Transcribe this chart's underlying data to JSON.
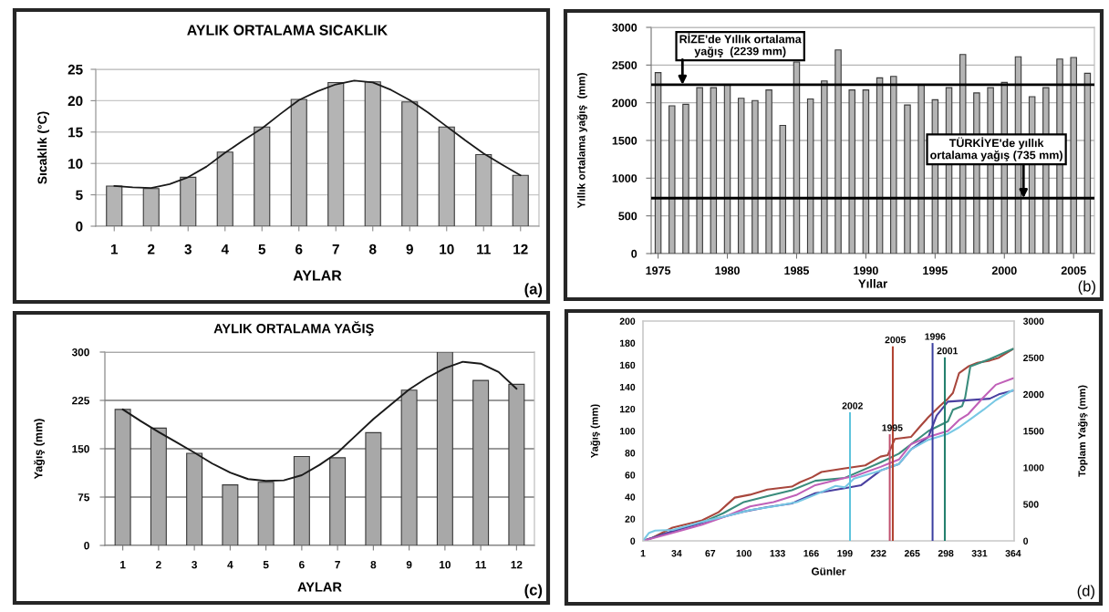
{
  "chart_data": [
    {
      "type": "bar",
      "title": "AYLIK ORTALAMA SICAKLIK",
      "xlabel": "AYLAR",
      "ylabel": "Sıcaklık (°C)",
      "x": [
        1,
        2,
        3,
        4,
        5,
        6,
        7,
        8,
        9,
        10,
        11,
        12
      ],
      "xlim": [
        0.5,
        12.5
      ],
      "xticks": [
        1,
        2,
        3,
        4,
        5,
        6,
        7,
        8,
        9,
        10,
        11,
        12
      ],
      "ylim": [
        0,
        25
      ],
      "yticks": [
        0,
        5,
        10,
        15,
        20,
        25
      ],
      "grid": "y",
      "series": [
        {
          "color": "#b4b4b4",
          "values": [
            6.4,
            6.0,
            7.8,
            11.8,
            15.8,
            20.2,
            22.9,
            23.0,
            19.8,
            15.8,
            11.4,
            8.1
          ]
        },
        {
          "type": "line",
          "color": "#1a1a1a",
          "x": [
            1,
            1.5,
            2,
            2.5,
            3,
            3.5,
            4,
            4.5,
            5,
            5.5,
            6,
            6.5,
            7,
            7.5,
            8,
            8.5,
            9,
            9.5,
            10,
            10.5,
            11,
            11.5,
            12
          ],
          "values": [
            6.4,
            6.2,
            6.1,
            6.7,
            7.8,
            9.5,
            11.7,
            13.7,
            15.6,
            17.9,
            20.1,
            21.5,
            22.6,
            23.2,
            22.9,
            21.7,
            20.1,
            18.1,
            15.9,
            13.7,
            11.6,
            9.8,
            8.1
          ]
        }
      ],
      "annotations": [
        "(a)"
      ]
    },
    {
      "type": "bar",
      "xlabel": "Yıllar",
      "ylabel": "Yıllık ortalama yağış  (mm)",
      "x": [
        1975,
        1976,
        1977,
        1978,
        1979,
        1980,
        1981,
        1982,
        1983,
        1984,
        1985,
        1986,
        1987,
        1988,
        1989,
        1990,
        1991,
        1992,
        1993,
        1994,
        1995,
        1996,
        1997,
        1998,
        1999,
        2000,
        2001,
        2002,
        2003,
        2004,
        2005,
        2006
      ],
      "xlim": [
        1974.5,
        2006.5
      ],
      "xticks": [
        1975,
        1980,
        1985,
        1990,
        1995,
        2000,
        2005
      ],
      "ylim": [
        0,
        3000
      ],
      "yticks": [
        0,
        500,
        1000,
        1500,
        2000,
        2500,
        3000
      ],
      "grid": "y",
      "series": [
        {
          "color": "#b4b4b4",
          "values": [
            2400,
            1960,
            1980,
            2200,
            2200,
            2240,
            2060,
            2030,
            2170,
            1700,
            2540,
            2050,
            2290,
            2700,
            2170,
            2170,
            2330,
            2350,
            1970,
            2240,
            2040,
            2200,
            2640,
            2130,
            2200,
            2270,
            2610,
            2080,
            2200,
            2580,
            2600,
            2390
          ]
        }
      ],
      "ref_lines": [
        {
          "axis": "y",
          "value": 2239,
          "label": "RİZE'de Yıllık ortalama\nyağış  (2239 mm)"
        },
        {
          "axis": "y",
          "value": 735,
          "label": "TÜRKİYE'de yıllık\nortalama yağış (735 mm)"
        }
      ],
      "annotations": [
        "(b)"
      ]
    },
    {
      "type": "bar",
      "title": "AYLIK ORTALAMA YAĞIŞ",
      "xlabel": "AYLAR",
      "ylabel": "Yağış (mm)",
      "x": [
        1,
        2,
        3,
        4,
        5,
        6,
        7,
        8,
        9,
        10,
        11,
        12
      ],
      "xlim": [
        0.5,
        12.5
      ],
      "xticks": [
        1,
        2,
        3,
        4,
        5,
        6,
        7,
        8,
        9,
        10,
        11,
        12
      ],
      "ylim": [
        0,
        300
      ],
      "yticks": [
        0,
        75,
        150,
        225,
        300
      ],
      "grid": "y",
      "series": [
        {
          "color": "#a8a8a8",
          "values": [
            211,
            182,
            143,
            94,
            98,
            138,
            136,
            175,
            241,
            300,
            256,
            250
          ]
        },
        {
          "type": "line",
          "color": "#1a1a1a",
          "x": [
            1,
            1.5,
            2,
            2.5,
            3,
            3.5,
            4,
            4.5,
            5,
            5.5,
            6,
            6.5,
            7,
            7.5,
            8,
            8.5,
            9,
            9.5,
            10,
            10.5,
            11,
            11.5,
            12
          ],
          "values": [
            211,
            193,
            176,
            160,
            144,
            127,
            113,
            103,
            100,
            101,
            109,
            125,
            144,
            170,
            196,
            219,
            242,
            260,
            275,
            285,
            282,
            269,
            243
          ]
        }
      ],
      "annotations": [
        "(c)"
      ]
    },
    {
      "type": "line",
      "xlabel": "Günler",
      "ylabel": "Yağış (mm)",
      "y2label": "Toplam Yağış (mm)",
      "xlim": [
        1,
        365
      ],
      "xticks": [
        1,
        34,
        67,
        100,
        133,
        166,
        199,
        232,
        265,
        298,
        331,
        364
      ],
      "ylim": [
        0,
        200
      ],
      "yticks": [
        0,
        20,
        40,
        60,
        80,
        100,
        120,
        140,
        160,
        180,
        200
      ],
      "y2lim": [
        0,
        3000
      ],
      "y2ticks": [
        0,
        500,
        1000,
        1500,
        2000,
        2500,
        3000
      ],
      "series": [
        {
          "axis": "y2",
          "color": "#a8463c",
          "x": [
            1,
            10,
            30,
            59,
            75,
            83,
            91,
            106,
            123,
            147,
            155,
            167,
            176,
            199,
            219,
            234,
            241,
            248,
            264,
            272,
            281,
            292,
            300,
            305,
            311,
            320,
            329,
            341,
            350,
            364
          ],
          "values": [
            0,
            40,
            180,
            280,
            390,
            490,
            590,
            630,
            700,
            740,
            800,
            870,
            940,
            990,
            1030,
            1150,
            1170,
            1390,
            1420,
            1550,
            1690,
            1840,
            1940,
            2020,
            2290,
            2380,
            2430,
            2460,
            2500,
            2620
          ]
        },
        {
          "axis": "y2",
          "color": "#3a8c7c",
          "x": [
            1,
            30,
            59,
            80,
            100,
            123,
            147,
            170,
            199,
            234,
            252,
            264,
            281,
            300,
            305,
            314,
            317,
            322,
            341,
            364
          ],
          "values": [
            0,
            130,
            250,
            380,
            530,
            610,
            690,
            820,
            860,
            1070,
            1190,
            1320,
            1500,
            1630,
            1790,
            1840,
            1960,
            2380,
            2480,
            2620
          ]
        },
        {
          "axis": "y2",
          "color": "#4a40a0",
          "x": [
            1,
            30,
            59,
            83,
            100,
            123,
            147,
            170,
            199,
            215,
            234,
            252,
            264,
            281,
            289,
            300,
            341,
            350,
            364
          ],
          "values": [
            0,
            130,
            250,
            340,
            400,
            460,
            510,
            650,
            720,
            760,
            960,
            1050,
            1250,
            1420,
            1710,
            1900,
            1940,
            2000,
            2050
          ]
        },
        {
          "axis": "y2",
          "color": "#c060b8",
          "x": [
            1,
            30,
            59,
            83,
            106,
            129,
            152,
            170,
            199,
            208,
            234,
            252,
            264,
            281,
            300,
            311,
            320,
            335,
            347,
            364
          ],
          "values": [
            0,
            110,
            220,
            340,
            470,
            530,
            630,
            760,
            860,
            880,
            1010,
            1110,
            1320,
            1420,
            1500,
            1650,
            1730,
            1960,
            2130,
            2220
          ]
        },
        {
          "axis": "y2",
          "color": "#78c8e4",
          "x": [
            1,
            7,
            13,
            30,
            59,
            83,
            106,
            129,
            152,
            170,
            190,
            199,
            208,
            234,
            252,
            264,
            281,
            300,
            311,
            323,
            335,
            347,
            364
          ],
          "values": [
            0,
            110,
            140,
            150,
            260,
            340,
            420,
            470,
            530,
            630,
            750,
            730,
            850,
            960,
            1050,
            1250,
            1380,
            1460,
            1550,
            1670,
            1790,
            1920,
            2060
          ]
        },
        {
          "type": "bar",
          "name": "2002",
          "color": "#5ec4dc",
          "x": [
            204
          ],
          "values": [
            117
          ]
        },
        {
          "type": "bar",
          "name": "1995",
          "color": "#c0506e",
          "x": [
            243
          ],
          "values": [
            97
          ]
        },
        {
          "type": "bar",
          "name": "2005",
          "color": "#b0402e",
          "x": [
            246
          ],
          "values": [
            177
          ]
        },
        {
          "type": "bar",
          "name": "1996",
          "color": "#3a3ea0",
          "x": [
            285
          ],
          "values": [
            180
          ]
        },
        {
          "type": "bar",
          "name": "2001",
          "color": "#24806e",
          "x": [
            297
          ],
          "values": [
            167
          ]
        }
      ],
      "annotations": [
        "(d)"
      ]
    }
  ]
}
